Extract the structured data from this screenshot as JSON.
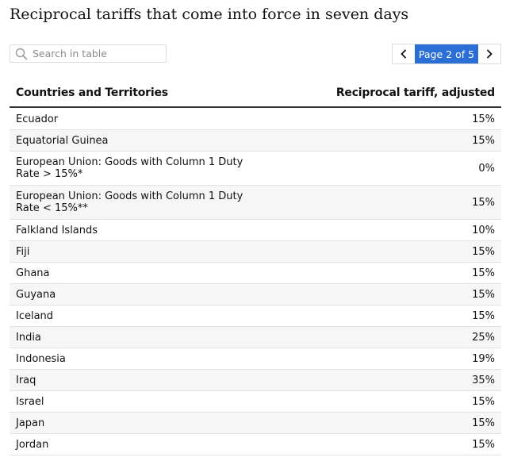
{
  "title": "Reciprocal tariffs that come into force in seven days",
  "search": {
    "placeholder": "Search in table",
    "icon": "search-icon"
  },
  "pager": {
    "label": "Page 2 of 5",
    "prev_icon": "chevron-left-icon",
    "next_icon": "chevron-right-icon"
  },
  "colors": {
    "accent": "#2b6fd6",
    "alt_row": "#f6f6f6",
    "header_rule": "#333333"
  },
  "table": {
    "columns": [
      "Countries and Territories",
      "Reciprocal tariff, adjusted"
    ],
    "rows": [
      {
        "country": "Ecuador",
        "tariff": "15%"
      },
      {
        "country": "Equatorial Guinea",
        "tariff": "15%"
      },
      {
        "country": "European Union: Goods with Column 1 Duty Rate > 15%*",
        "tariff": "0%"
      },
      {
        "country": "European Union: Goods with Column 1 Duty Rate < 15%**",
        "tariff": "15%"
      },
      {
        "country": "Falkland Islands",
        "tariff": "10%"
      },
      {
        "country": "Fiji",
        "tariff": "15%"
      },
      {
        "country": "Ghana",
        "tariff": "15%"
      },
      {
        "country": "Guyana",
        "tariff": "15%"
      },
      {
        "country": "Iceland",
        "tariff": "15%"
      },
      {
        "country": "India",
        "tariff": "25%"
      },
      {
        "country": "Indonesia",
        "tariff": "19%"
      },
      {
        "country": "Iraq",
        "tariff": "35%"
      },
      {
        "country": "Israel",
        "tariff": "15%"
      },
      {
        "country": "Japan",
        "tariff": "15%"
      },
      {
        "country": "Jordan",
        "tariff": "15%"
      }
    ]
  }
}
